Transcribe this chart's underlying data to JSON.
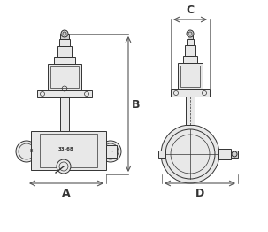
{
  "bg_color": "#ffffff",
  "line_color": "#333333",
  "dim_line_color": "#555555",
  "light_gray": "#cccccc",
  "mid_gray": "#aaaaaa",
  "dark_gray": "#888888",
  "fill_light": "#e8e8e8",
  "fill_mid": "#d0d0d0",
  "label_A": "A",
  "label_B": "B",
  "label_C": "C",
  "label_D": "D",
  "label_fontsize": 9,
  "fig_width": 3.03,
  "fig_height": 2.62,
  "dpi": 100
}
